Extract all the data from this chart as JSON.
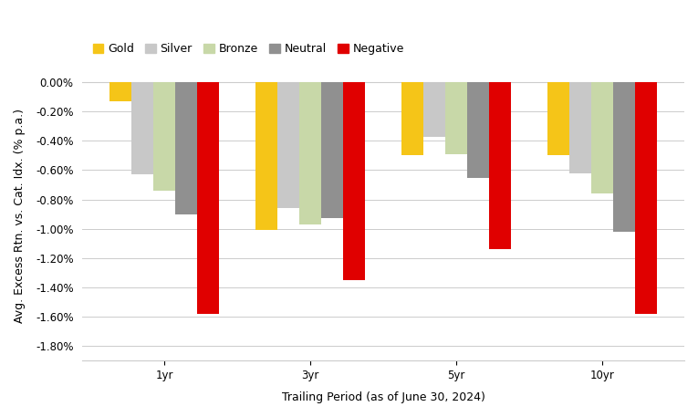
{
  "categories": [
    "1yr",
    "3yr",
    "5yr",
    "10yr"
  ],
  "series": {
    "Gold": [
      -0.13,
      -1.01,
      -0.5,
      -0.5
    ],
    "Silver": [
      -0.63,
      -0.86,
      -0.37,
      -0.62
    ],
    "Bronze": [
      -0.74,
      -0.97,
      -0.49,
      -0.76
    ],
    "Neutral": [
      -0.9,
      -0.93,
      -0.65,
      -1.02
    ],
    "Negative": [
      -1.58,
      -1.35,
      -1.14,
      -1.58
    ]
  },
  "colors": {
    "Gold": "#F5C518",
    "Silver": "#C8C8C8",
    "Bronze": "#C8D8A8",
    "Neutral": "#909090",
    "Negative": "#E00000"
  },
  "ylabel": "Avg. Excess Rtn. vs. Cat. Idx. (% p.a.)",
  "xlabel": "Trailing Period (as of June 30, 2024)",
  "ylim": [
    -1.9,
    0.08
  ],
  "yticks": [
    0.0,
    -0.2,
    -0.4,
    -0.6,
    -0.8,
    -1.0,
    -1.2,
    -1.4,
    -1.6,
    -1.8
  ],
  "bar_width": 0.15,
  "legend_order": [
    "Gold",
    "Silver",
    "Bronze",
    "Neutral",
    "Negative"
  ],
  "background_color": "#FFFFFF",
  "grid_color": "#CCCCCC",
  "axis_fontsize": 9,
  "tick_fontsize": 8.5,
  "legend_fontsize": 9
}
